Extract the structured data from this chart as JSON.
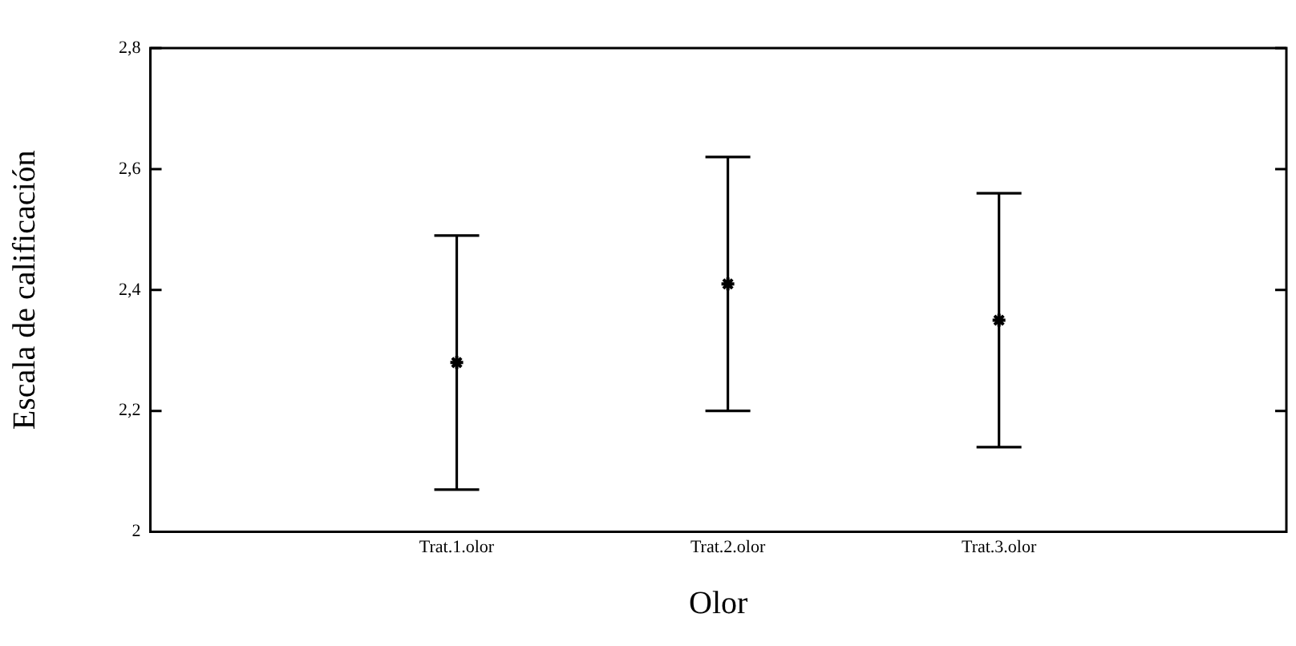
{
  "chart_data": {
    "type": "scatter",
    "xlabel": "Olor",
    "ylabel": "Escala de calificación",
    "categories": [
      "Trat.1.olor",
      "Trat.2.olor",
      "Trat.3.olor"
    ],
    "values": [
      2.28,
      2.41,
      2.35
    ],
    "errors": [
      0.21,
      0.21,
      0.21
    ],
    "color": "#000000",
    "marker": "cross",
    "grid": false,
    "legend": false,
    "ylim": [
      2,
      2.8
    ],
    "yticks": [
      {
        "value": 2,
        "label": "2"
      },
      {
        "value": 2.2,
        "label": "2,2"
      },
      {
        "value": 2.4,
        "label": "2,4"
      },
      {
        "value": 2.6,
        "label": "2,6"
      },
      {
        "value": 2.8,
        "label": "2,8"
      }
    ]
  }
}
